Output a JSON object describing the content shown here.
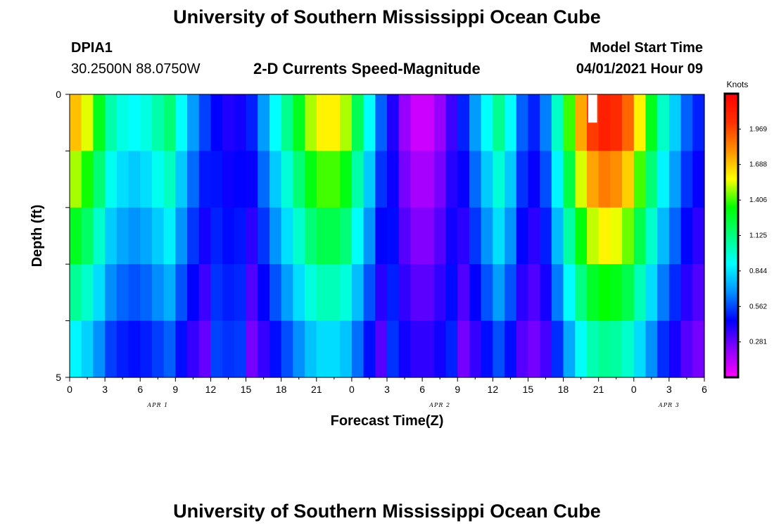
{
  "header": {
    "title": "University of Southern Mississippi Ocean Cube",
    "station": "DPIA1",
    "coords": "30.2500N  88.0750W",
    "plot_title": "2-D Currents Speed-Magnitude",
    "start_label": "Model Start Time",
    "start_value": "04/01/2021 Hour 09"
  },
  "footer": {
    "title": "University of Southern Mississippi Ocean Cube"
  },
  "chart_data": {
    "type": "heatmap",
    "title": "2-D Currents Speed-Magnitude",
    "xlabel": "Forecast Time(Z)",
    "ylabel": "Depth (ft)",
    "x_tick_labels": [
      "0",
      "3",
      "6",
      "9",
      "12",
      "15",
      "18",
      "21",
      "0",
      "3",
      "6",
      "9",
      "12",
      "15",
      "18",
      "21",
      "0",
      "3",
      "6"
    ],
    "date_labels": [
      {
        "label": "APR 1",
        "tick_index": 2.5
      },
      {
        "label": "APR 2",
        "tick_index": 10.5
      },
      {
        "label": "APR 3",
        "tick_index": 17.0
      }
    ],
    "y_tick_labels": [
      "0",
      "5"
    ],
    "ylim": [
      0,
      5
    ],
    "hours": 54,
    "depth_levels": 5,
    "colorbar": {
      "label": "Knots",
      "range": [
        0,
        2.25
      ],
      "ticks": [
        "1.969",
        "1.688",
        "1.406",
        "1.125",
        "0.844",
        "0.562",
        "0.281"
      ],
      "colors": [
        "#ff00ff",
        "#8a00ff",
        "#0000ff",
        "#0090ff",
        "#00ffff",
        "#00ff80",
        "#00ff00",
        "#ffff00",
        "#ff9000",
        "#ff3000",
        "#ff0000"
      ]
    },
    "speed_profile_surface_knots": [
      1.7,
      1.55,
      1.3,
      1.05,
      0.95,
      0.9,
      0.95,
      1.05,
      1.15,
      0.9,
      0.7,
      0.55,
      0.45,
      0.4,
      0.42,
      0.5,
      0.7,
      0.9,
      1.1,
      1.3,
      1.5,
      1.6,
      1.6,
      1.5,
      1.2,
      0.9,
      0.6,
      0.4,
      0.2,
      0.1,
      0.1,
      0.2,
      0.35,
      0.5,
      0.7,
      0.9,
      1.1,
      0.9,
      0.6,
      0.5,
      0.65,
      1.0,
      1.4,
      1.75,
      2.0,
      2.1,
      2.05,
      1.9,
      1.6,
      1.3,
      1.0,
      0.8,
      0.6,
      0.5,
      0.45
    ],
    "missing_data": [
      {
        "hour": 44,
        "depth_level": 0
      }
    ]
  }
}
